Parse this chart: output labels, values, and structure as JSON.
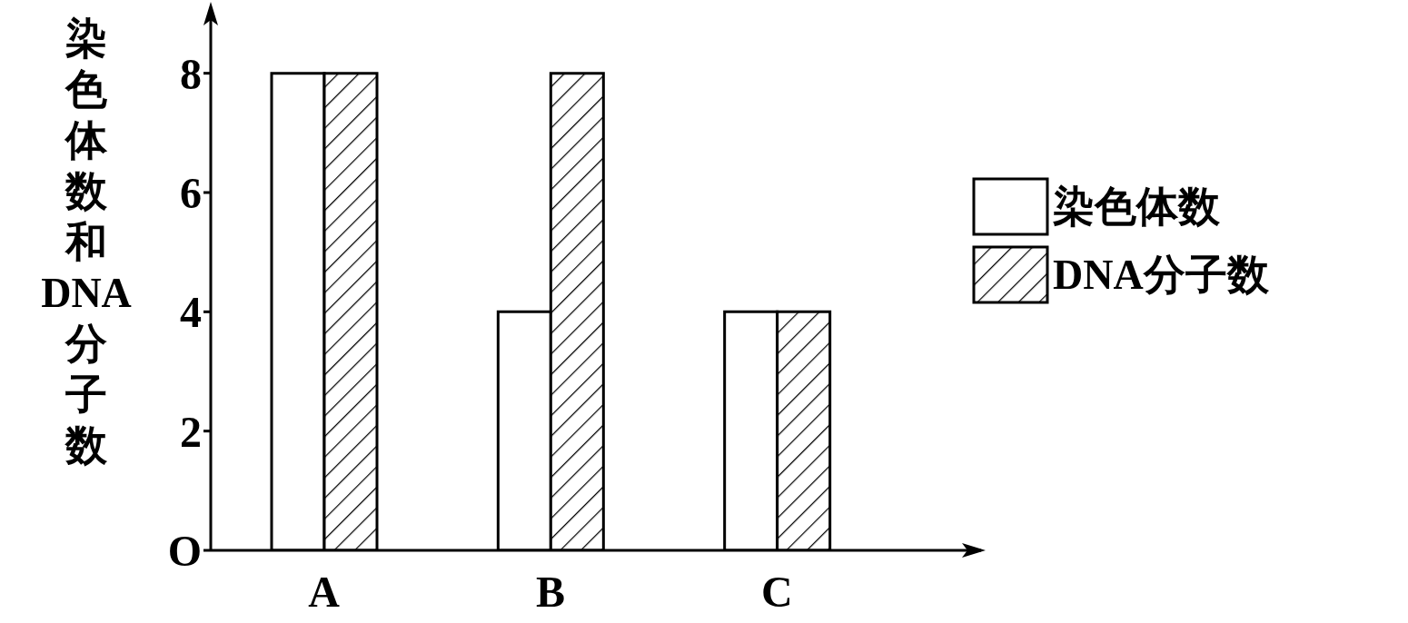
{
  "chart_data": {
    "type": "bar",
    "ylabel": "染色体数和DNA分子数",
    "categories": [
      "A",
      "B",
      "C"
    ],
    "series": [
      {
        "name": "染色体数",
        "color": "#ffffff",
        "values": [
          8,
          4,
          4
        ]
      },
      {
        "name": "DNA分子数",
        "color": "#000000",
        "values": [
          8,
          8,
          4
        ]
      }
    ],
    "ylim": [
      0,
      9
    ],
    "yticks": [
      {
        "value": 0,
        "label": "O"
      },
      2,
      4,
      6,
      8
    ],
    "grid": false,
    "legend": "right"
  }
}
